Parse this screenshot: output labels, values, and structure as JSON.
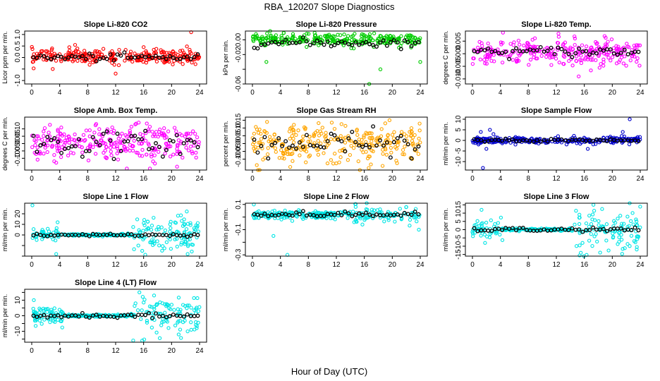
{
  "figure": {
    "title": "RBA_120207  Slope Diagnostics",
    "xlabel": "Hour of Day (UTC)"
  },
  "chart_data": [
    {
      "type": "scatter",
      "title": "Slope Li-820 CO2",
      "ylabel": "Licor ppm per min.",
      "color": "#ff0000",
      "xlim": [
        0,
        24
      ],
      "ylim": [
        -1.15,
        1.15
      ],
      "xticks": [
        0,
        4,
        8,
        12,
        16,
        20,
        24
      ],
      "yticks": [
        -1.0,
        -0.5,
        0.0,
        0.5,
        1.0
      ],
      "ytick_labels": [
        "-1.0",
        "",
        "0.0",
        "0.5",
        "1.0"
      ],
      "series": [
        {
          "role": "individual",
          "approx_center": 0.05,
          "approx_spread": 0.15,
          "outliers": [
            [
              22.8,
              1.1
            ],
            [
              12.0,
              -0.7
            ],
            [
              3.0,
              -0.5
            ],
            [
              6.2,
              0.55
            ],
            [
              16.0,
              0.45
            ]
          ]
        },
        {
          "role": "mean",
          "approx_center": 0.0,
          "approx_spread": 0.08
        }
      ]
    },
    {
      "type": "scatter",
      "title": "Slope Li-820 Pressure",
      "ylabel": "kPa per min.",
      "color": "#00cc00",
      "xlim": [
        0,
        24
      ],
      "ylim": [
        -0.06,
        0.012
      ],
      "xticks": [
        0,
        4,
        8,
        12,
        16,
        20,
        24
      ],
      "yticks": [
        -0.06,
        -0.04,
        -0.02,
        0.0
      ],
      "ytick_labels": [
        "-0.06",
        "",
        "-0.02",
        "0.00"
      ],
      "series": [
        {
          "role": "individual",
          "approx_center": 0.0,
          "approx_spread": 0.004,
          "outliers": [
            [
              0.5,
              0.008
            ],
            [
              2.0,
              -0.03
            ],
            [
              5.8,
              0.008
            ],
            [
              16.7,
              -0.06
            ],
            [
              18.3,
              -0.04
            ],
            [
              24.0,
              -0.03
            ],
            [
              15.9,
              0.007
            ]
          ]
        },
        {
          "role": "mean",
          "approx_center": -0.004,
          "approx_spread": 0.003
        }
      ]
    },
    {
      "type": "scatter",
      "title": "Slope Li-820 Temp.",
      "ylabel": "degrees C per min.",
      "color": "#ff00ff",
      "xlim": [
        0,
        24
      ],
      "ylim": [
        -0.012,
        0.009
      ],
      "xticks": [
        0,
        4,
        8,
        12,
        16,
        20,
        24
      ],
      "yticks": [
        -0.01,
        -0.005,
        0.0,
        0.005
      ],
      "ytick_labels": [
        "-0.010",
        "-0.005",
        "0.000",
        "0.005"
      ],
      "series": [
        {
          "role": "individual",
          "approx_center": 0.0005,
          "approx_spread": 0.0025,
          "outliers": [
            [
              12.3,
              0.008
            ],
            [
              15.2,
              -0.009
            ],
            [
              18.9,
              0.007
            ],
            [
              13.0,
              -0.004
            ]
          ]
        },
        {
          "role": "mean",
          "approx_center": 0.0008,
          "approx_spread": 0.001
        }
      ]
    },
    {
      "type": "scatter",
      "title": "Slope Amb. Box Temp.",
      "ylabel": "degrees C per min.",
      "color": "#ff00ff",
      "xlim": [
        0,
        24
      ],
      "ylim": [
        -0.18,
        0.18
      ],
      "xticks": [
        0,
        4,
        8,
        12,
        16,
        20,
        24
      ],
      "yticks": [
        -0.1,
        -0.05,
        0.0,
        0.05,
        0.1
      ],
      "ytick_labels": [
        "-0.10",
        "-0.05",
        "0.00",
        "0.05",
        "0.10"
      ],
      "series": [
        {
          "role": "individual",
          "approx_center": 0.0,
          "approx_spread": 0.06,
          "outliers": [
            [
              13.6,
              -0.17
            ],
            [
              16.9,
              -0.17
            ],
            [
              3.5,
              -0.13
            ]
          ]
        },
        {
          "role": "mean",
          "approx_center": 0.0,
          "approx_spread": 0.04
        }
      ]
    },
    {
      "type": "scatter",
      "title": "Slope Gas Stream RH",
      "ylabel": "percent per min.",
      "color": "#ffa500",
      "xlim": [
        0,
        24
      ],
      "ylim": [
        -0.17,
        0.17
      ],
      "xticks": [
        0,
        4,
        8,
        12,
        16,
        20,
        24
      ],
      "yticks": [
        -0.1,
        -0.05,
        0.0,
        0.05,
        0.1,
        0.15
      ],
      "ytick_labels": [
        "-0.10",
        "-0.05",
        "0.00",
        "0.05",
        "0.10",
        "0.15"
      ],
      "series": [
        {
          "role": "individual",
          "approx_center": 0.0,
          "approx_spread": 0.06,
          "outliers": [
            [
              19.6,
              0.15
            ],
            [
              5.4,
              -0.15
            ],
            [
              19.0,
              0.13
            ]
          ]
        },
        {
          "role": "mean",
          "approx_center": 0.0,
          "approx_spread": 0.04
        }
      ]
    },
    {
      "type": "scatter",
      "title": "Slope Sample Flow",
      "ylabel": "ml/min per min.",
      "color": "#0000cc",
      "xlim": [
        0,
        24
      ],
      "ylim": [
        -14,
        11
      ],
      "xticks": [
        0,
        4,
        8,
        12,
        16,
        20,
        24
      ],
      "yticks": [
        -10,
        -5,
        0,
        5,
        10
      ],
      "ytick_labels": [
        "-10",
        "-5",
        "0",
        "5",
        "10"
      ],
      "series": [
        {
          "role": "individual",
          "approx_center": 0.0,
          "approx_spread": 0.8,
          "outliers": [
            [
              1.5,
              -13
            ],
            [
              22.5,
              10
            ],
            [
              1.2,
              4
            ],
            [
              2.5,
              5
            ],
            [
              21.5,
              4
            ],
            [
              2.0,
              -4
            ],
            [
              16.5,
              -4
            ],
            [
              3.0,
              3
            ]
          ]
        },
        {
          "role": "mean",
          "approx_center": 0.0,
          "approx_spread": 0.3
        }
      ]
    },
    {
      "type": "scatter",
      "title": "Slope Line 1 Flow",
      "ylabel": "ml/min per min.",
      "color": "#00e5e5",
      "xlim": [
        0,
        24
      ],
      "ylim": [
        -20,
        30
      ],
      "xticks": [
        0,
        4,
        8,
        12,
        16,
        20,
        24
      ],
      "yticks": [
        -20,
        -10,
        0,
        10,
        20
      ],
      "ytick_labels": [
        "",
        "",
        "0",
        "10",
        "20"
      ],
      "series": [
        {
          "role": "individual",
          "approx_center": 0.0,
          "approx_spread": 4,
          "outliers": [
            [
              0.1,
              28
            ],
            [
              3.5,
              -18
            ],
            [
              22.3,
              -18
            ],
            [
              15.8,
              -15
            ],
            [
              3.7,
              12
            ]
          ]
        },
        {
          "role": "mean",
          "approx_center": 0.0,
          "approx_spread": 0.5
        }
      ]
    },
    {
      "type": "scatter",
      "title": "Slope Line 2 Flow",
      "ylabel": "ml/min per min.",
      "color": "#00e5e5",
      "xlim": [
        0,
        24
      ],
      "ylim": [
        -0.31,
        0.11
      ],
      "xticks": [
        0,
        4,
        8,
        12,
        16,
        20,
        24
      ],
      "yticks": [
        -0.3,
        -0.2,
        -0.1,
        0.0,
        0.1
      ],
      "ytick_labels": [
        "-0.3",
        "",
        "-0.1",
        "",
        "0.1"
      ],
      "series": [
        {
          "role": "individual",
          "approx_center": 0.02,
          "approx_spread": 0.015,
          "outliers": [
            [
              5.0,
              -0.3
            ],
            [
              3.0,
              -0.15
            ],
            [
              0.2,
              0.1
            ],
            [
              23.8,
              -0.1
            ],
            [
              22.0,
              0.08
            ]
          ]
        },
        {
          "role": "mean",
          "approx_center": 0.02,
          "approx_spread": 0.01
        }
      ]
    },
    {
      "type": "scatter",
      "title": "Slope Line 3 Flow",
      "ylabel": "ml/min per min.",
      "color": "#00e5e5",
      "xlim": [
        0,
        24
      ],
      "ylim": [
        -16,
        16
      ],
      "xticks": [
        0,
        4,
        8,
        12,
        16,
        20,
        24
      ],
      "yticks": [
        -15,
        -10,
        -5,
        0,
        5,
        10,
        15
      ],
      "ytick_labels": [
        "-15",
        "-10",
        "-5",
        "0",
        "5",
        "10",
        "15"
      ],
      "series": [
        {
          "role": "individual",
          "approx_center": 0.0,
          "approx_spread": 3,
          "outliers": [
            [
              1.3,
              12
            ],
            [
              15.5,
              -14
            ],
            [
              17.3,
              15
            ],
            [
              23.5,
              -12
            ],
            [
              1.8,
              -8
            ],
            [
              0.5,
              3
            ]
          ]
        },
        {
          "role": "mean",
          "approx_center": 0.0,
          "approx_spread": 0.6
        }
      ]
    },
    {
      "type": "scatter",
      "title": "Slope Line 4 (LT) Flow",
      "ylabel": "ml/min per min.",
      "color": "#00e5e5",
      "xlim": [
        0,
        24
      ],
      "ylim": [
        -17,
        17
      ],
      "xticks": [
        0,
        4,
        8,
        12,
        16,
        20,
        24
      ],
      "yticks": [
        -15,
        -10,
        -5,
        0,
        5,
        10,
        15
      ],
      "ytick_labels": [
        "",
        "-10",
        "",
        "0",
        "",
        "10",
        ""
      ],
      "series": [
        {
          "role": "individual",
          "approx_center": 0.0,
          "approx_spread": 3,
          "outliers": [
            [
              15.8,
              -16
            ],
            [
              15.4,
              15
            ],
            [
              0.3,
              10
            ],
            [
              23.6,
              -8
            ],
            [
              22.3,
              -10
            ],
            [
              17.5,
              13
            ]
          ]
        },
        {
          "role": "mean",
          "approx_center": 0.0,
          "approx_spread": 0.7
        }
      ]
    }
  ]
}
